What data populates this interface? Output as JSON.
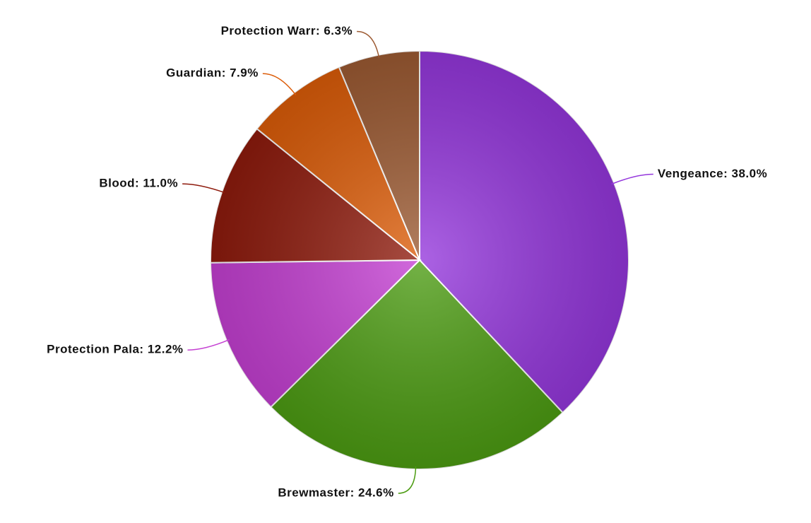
{
  "chart_data": {
    "type": "pie",
    "values": [
      38.0,
      24.6,
      12.2,
      11.0,
      7.9,
      6.3
    ],
    "value_labels": [
      "Vengeance: 38.0%",
      "Brewmaster: 24.6%",
      "Protection Pala: 12.2%",
      "Blood: 11.0%",
      "Guardian: 7.9%",
      "Protection Warr: 6.3%"
    ],
    "colors": [
      "#9436dc",
      "#4c9c12",
      "#c43fd2",
      "#8e1a0c",
      "#dc5c08",
      "#9c5a32"
    ]
  }
}
